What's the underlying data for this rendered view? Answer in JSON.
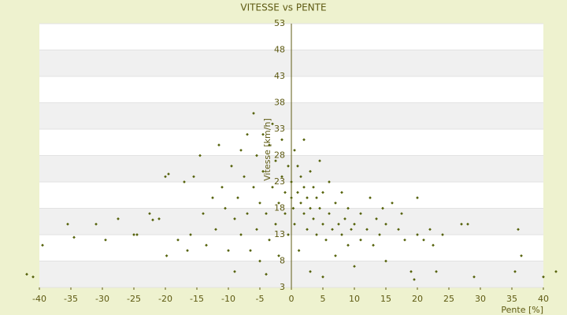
{
  "chart_data": {
    "type": "scatter",
    "title": "VITESSE vs PENTE",
    "x_label": "Pente [%]",
    "y_label": "Vitesse [km/h]",
    "color": "#55620a",
    "banded_grid": true,
    "xlim": [
      -40,
      40
    ],
    "xticks": [
      -40,
      -35,
      -30,
      -25,
      -20,
      -15,
      -10,
      -5,
      0,
      5,
      10,
      15,
      20,
      25,
      30,
      35,
      40
    ],
    "ylim": [
      3,
      53
    ],
    "yticks": [
      3,
      8,
      13,
      18,
      23,
      28,
      33,
      38,
      43,
      48,
      53
    ],
    "x": [
      -42,
      -41,
      -39.5,
      -35.5,
      -34.5,
      -31,
      -29.5,
      -27.5,
      -25,
      -24.5,
      -22.5,
      -22,
      -21,
      -20,
      -19.5,
      -19.8,
      -18,
      -17,
      -16.5,
      -16,
      -15.5,
      -14.5,
      -14,
      -13.5,
      -12.5,
      -12,
      -11.5,
      -11,
      -10.5,
      -10,
      -9.5,
      -9,
      -9,
      -8.5,
      -8,
      -8,
      -7.5,
      -7,
      -7,
      -6.5,
      -6,
      -6,
      -5.5,
      -5.5,
      -5,
      -5,
      -4.5,
      -4.5,
      -4,
      -4,
      -3.5,
      -3.5,
      -3,
      -3,
      -2.5,
      -2.5,
      -2,
      -2,
      -1.5,
      -1.5,
      -1,
      -1,
      -0.5,
      -0.5,
      0,
      0,
      0.3,
      0.5,
      0.5,
      1,
      1,
      1.2,
      1.5,
      1.5,
      2,
      2,
      2,
      2.5,
      2.5,
      3,
      3,
      3,
      3.5,
      3.5,
      4,
      4,
      4.5,
      4.5,
      5,
      5,
      5,
      5.5,
      6,
      6,
      6.5,
      7,
      7,
      7.5,
      8,
      8,
      8.5,
      9,
      9,
      9.5,
      10,
      10,
      11,
      11,
      12,
      12.5,
      13,
      13.5,
      14,
      14.5,
      15,
      15,
      16,
      17,
      17.5,
      18,
      19,
      19.5,
      20,
      20,
      21,
      22,
      22.5,
      23,
      24,
      27,
      28,
      29,
      35.5,
      36,
      36.5,
      40,
      42
    ],
    "values": [
      5.5,
      5,
      11,
      15,
      12.5,
      15,
      12,
      16,
      13,
      13,
      17,
      15.8,
      16,
      24,
      24.5,
      9,
      12,
      23,
      10,
      13,
      24,
      28,
      17,
      11,
      20,
      14,
      30,
      22,
      18,
      10,
      26,
      16,
      6,
      20,
      29,
      13,
      24,
      32,
      17,
      10,
      36,
      22,
      14,
      28,
      8,
      19,
      32,
      25,
      17,
      5.5,
      30,
      12,
      22,
      34,
      15,
      27,
      19,
      9,
      24,
      31,
      17,
      21,
      26,
      13,
      20,
      23,
      18,
      29,
      15,
      21,
      26,
      10,
      19,
      24,
      17,
      22,
      31,
      14,
      20,
      18,
      25,
      6,
      16,
      22,
      13,
      20,
      18,
      27,
      15,
      21,
      5,
      12,
      17,
      23,
      14,
      19,
      9,
      15,
      13,
      21,
      16,
      11,
      18,
      14,
      15,
      7,
      17,
      12,
      14,
      20,
      11,
      16,
      13,
      18,
      15,
      8,
      19,
      14,
      17,
      12,
      6,
      4.5,
      13,
      20,
      12,
      14,
      11,
      6,
      13,
      15,
      15,
      5,
      6,
      14,
      9,
      5,
      6
    ]
  }
}
